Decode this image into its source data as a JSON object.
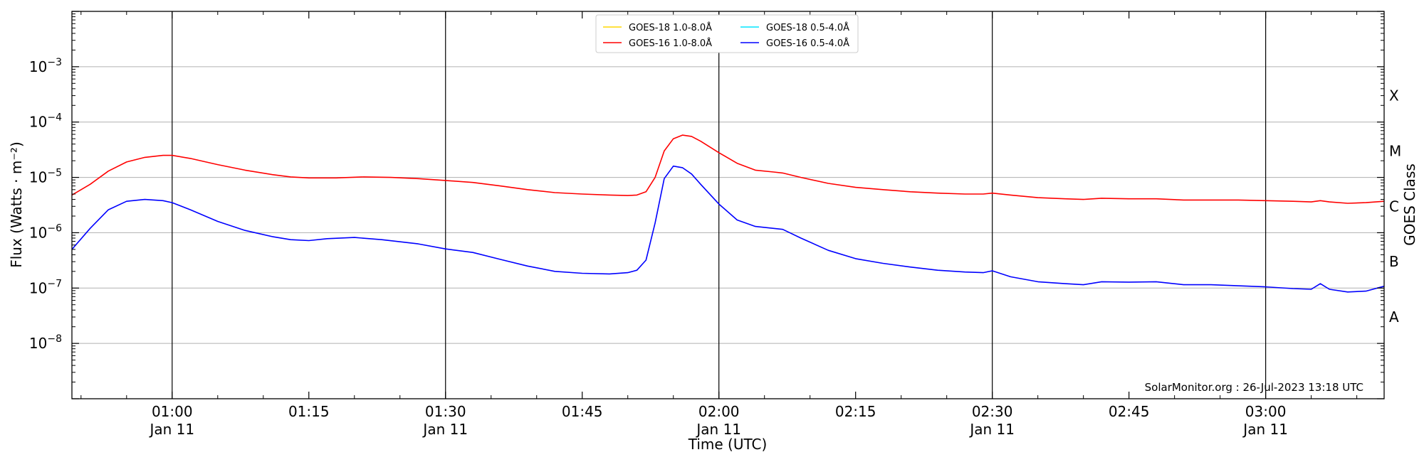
{
  "chart_data": {
    "type": "line",
    "xlabel": "Time (UTC)",
    "ylabel": "Flux (Watts · m⁻²)",
    "ylabel_right": "GOES Class",
    "yscale": "log",
    "ylim": [
      1e-09,
      0.01
    ],
    "xlim": [
      "00:49",
      "03:13"
    ],
    "x_ticks": [
      {
        "time": "01:00",
        "date": "Jan 11"
      },
      {
        "time": "01:15",
        "date": ""
      },
      {
        "time": "01:30",
        "date": "Jan 11"
      },
      {
        "time": "01:45",
        "date": ""
      },
      {
        "time": "02:00",
        "date": "Jan 11"
      },
      {
        "time": "02:15",
        "date": ""
      },
      {
        "time": "02:30",
        "date": "Jan 11"
      },
      {
        "time": "02:45",
        "date": ""
      },
      {
        "time": "03:00",
        "date": "Jan 11"
      }
    ],
    "y_ticks": [
      {
        "exp": "-8",
        "value": 1e-08
      },
      {
        "exp": "-7",
        "value": 1e-07
      },
      {
        "exp": "-6",
        "value": 1e-06
      },
      {
        "exp": "-5",
        "value": 1e-05
      },
      {
        "exp": "-4",
        "value": 0.0001
      },
      {
        "exp": "-3",
        "value": 0.001
      }
    ],
    "goes_classes": [
      {
        "label": "A",
        "value": 3e-08
      },
      {
        "label": "B",
        "value": 3e-07
      },
      {
        "label": "C",
        "value": 3e-06
      },
      {
        "label": "M",
        "value": 3e-05
      },
      {
        "label": "X",
        "value": 0.0003
      }
    ],
    "grid": true,
    "legend_position": "top-center",
    "watermark": "SolarMonitor.org : 26-Jul-2023 13:18 UTC",
    "series": [
      {
        "name": "GOES-18 1.0-8.0Å",
        "color": "#ffd700",
        "x": [],
        "y": []
      },
      {
        "name": "GOES-16 1.0-8.0Å",
        "color": "#ff0000",
        "x": [
          "00:49",
          "00:51",
          "00:53",
          "00:55",
          "00:57",
          "00:59",
          "01:00",
          "01:02",
          "01:05",
          "01:08",
          "01:11",
          "01:13",
          "01:15",
          "01:18",
          "01:21",
          "01:24",
          "01:27",
          "01:30",
          "01:33",
          "01:36",
          "01:39",
          "01:42",
          "01:45",
          "01:48",
          "01:50",
          "01:51",
          "01:52",
          "01:53",
          "01:54",
          "01:55",
          "01:56",
          "01:57",
          "01:58",
          "02:00",
          "02:02",
          "02:04",
          "02:06",
          "02:07",
          "02:09",
          "02:12",
          "02:15",
          "02:18",
          "02:21",
          "02:24",
          "02:27",
          "02:29",
          "02:30",
          "02:32",
          "02:35",
          "02:38",
          "02:40",
          "02:42",
          "02:45",
          "02:48",
          "02:51",
          "02:54",
          "02:57",
          "03:00",
          "03:03",
          "03:05",
          "03:06",
          "03:07",
          "03:09",
          "03:11",
          "03:13"
        ],
        "y": [
          4.8e-06,
          7.5e-06,
          1.3e-05,
          1.9e-05,
          2.3e-05,
          2.5e-05,
          2.5e-05,
          2.2e-05,
          1.7e-05,
          1.35e-05,
          1.12e-05,
          1.02e-05,
          9.8e-06,
          9.8e-06,
          1.02e-05,
          1e-05,
          9.5e-06,
          8.8e-06,
          8.1e-06,
          7e-06,
          6e-06,
          5.3e-06,
          5e-06,
          4.8e-06,
          4.7e-06,
          4.8e-06,
          5.5e-06,
          1e-05,
          3e-05,
          5e-05,
          5.8e-05,
          5.5e-05,
          4.5e-05,
          2.8e-05,
          1.8e-05,
          1.35e-05,
          1.25e-05,
          1.2e-05,
          1e-05,
          7.8e-06,
          6.6e-06,
          6e-06,
          5.5e-06,
          5.2e-06,
          5e-06,
          5e-06,
          5.2e-06,
          4.8e-06,
          4.3e-06,
          4.1e-06,
          4e-06,
          4.2e-06,
          4.1e-06,
          4.1e-06,
          3.9e-06,
          3.9e-06,
          3.9e-06,
          3.8e-06,
          3.7e-06,
          3.6e-06,
          3.8e-06,
          3.6e-06,
          3.4e-06,
          3.5e-06,
          3.7e-06
        ]
      },
      {
        "name": "GOES-18 0.5-4.0Å",
        "color": "#00e5ff",
        "x": [],
        "y": []
      },
      {
        "name": "GOES-16 0.5-4.0Å",
        "color": "#0000ff",
        "x": [
          "00:49",
          "00:51",
          "00:53",
          "00:55",
          "00:57",
          "00:59",
          "01:00",
          "01:02",
          "01:05",
          "01:08",
          "01:11",
          "01:13",
          "01:15",
          "01:17",
          "01:20",
          "01:23",
          "01:27",
          "01:30",
          "01:33",
          "01:36",
          "01:39",
          "01:42",
          "01:45",
          "01:48",
          "01:50",
          "01:51",
          "01:52",
          "01:53",
          "01:54",
          "01:55",
          "01:56",
          "01:57",
          "01:58",
          "02:00",
          "02:02",
          "02:04",
          "02:06",
          "02:07",
          "02:09",
          "02:12",
          "02:15",
          "02:18",
          "02:21",
          "02:24",
          "02:27",
          "02:29",
          "02:30",
          "02:32",
          "02:35",
          "02:38",
          "02:40",
          "02:42",
          "02:45",
          "02:48",
          "02:51",
          "02:54",
          "02:57",
          "03:00",
          "03:03",
          "03:05",
          "03:06",
          "03:07",
          "03:09",
          "03:11",
          "03:13"
        ],
        "y": [
          5e-07,
          1.2e-06,
          2.6e-06,
          3.7e-06,
          4e-06,
          3.8e-06,
          3.5e-06,
          2.6e-06,
          1.6e-06,
          1.1e-06,
          8.5e-07,
          7.5e-07,
          7.2e-07,
          7.8e-07,
          8.2e-07,
          7.5e-07,
          6.3e-07,
          5.1e-07,
          4.4e-07,
          3.3e-07,
          2.5e-07,
          2e-07,
          1.85e-07,
          1.8e-07,
          1.9e-07,
          2.1e-07,
          3.2e-07,
          1.5e-06,
          9.5e-06,
          1.6e-05,
          1.5e-05,
          1.15e-05,
          7.5e-06,
          3.3e-06,
          1.7e-06,
          1.3e-06,
          1.2e-06,
          1.15e-06,
          8e-07,
          4.8e-07,
          3.4e-07,
          2.8e-07,
          2.4e-07,
          2.1e-07,
          1.95e-07,
          1.9e-07,
          2.05e-07,
          1.6e-07,
          1.3e-07,
          1.2e-07,
          1.15e-07,
          1.3e-07,
          1.28e-07,
          1.3e-07,
          1.15e-07,
          1.15e-07,
          1.1e-07,
          1.05e-07,
          9.8e-08,
          9.5e-08,
          1.2e-07,
          9.5e-08,
          8.5e-08,
          8.8e-08,
          1.08e-07
        ]
      }
    ]
  }
}
